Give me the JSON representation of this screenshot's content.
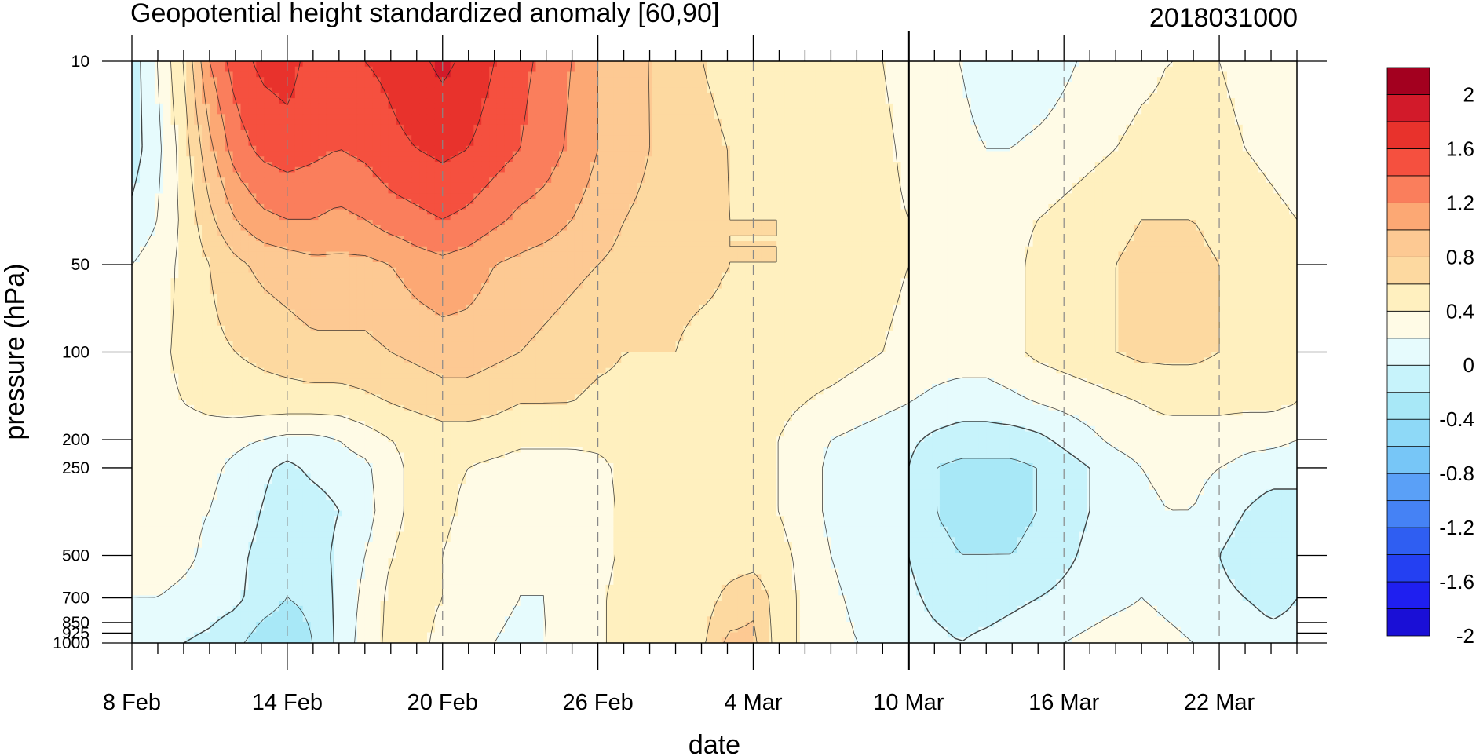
{
  "chart_data": {
    "type": "heatmap",
    "title": "Geopotential height standardized anomaly [60,90]",
    "date_label": "2018031000",
    "xlabel": "date",
    "ylabel": "pressure (hPa)",
    "x_tick_labels": [
      "8 Feb",
      "14 Feb",
      "20 Feb",
      "26 Feb",
      "4 Mar",
      "10 Mar",
      "16 Mar",
      "22 Mar"
    ],
    "x_tick_days": [
      0,
      6,
      12,
      18,
      24,
      30,
      36,
      42
    ],
    "x_range_days": [
      0,
      45
    ],
    "analysis_day": 30,
    "y_scale": "log",
    "y_ticks": [
      {
        "label": "10",
        "p": 10
      },
      {
        "label": "50",
        "p": 50
      },
      {
        "label": "100",
        "p": 100
      },
      {
        "label": "200",
        "p": 200
      },
      {
        "label": "250",
        "p": 250
      },
      {
        "label": "500",
        "p": 500
      },
      {
        "label": "700",
        "p": 700
      },
      {
        "label": "850",
        "p": 850
      },
      {
        "label": "925",
        "p": 925
      },
      {
        "label": "1000",
        "p": 1000
      }
    ],
    "ylim": [
      1000,
      10
    ],
    "levels": [
      -2,
      -1.8,
      -1.6,
      -1.4,
      -1.2,
      -1,
      -0.8,
      -0.6,
      -0.4,
      -0.2,
      0,
      0.2,
      0.4,
      0.6,
      0.8,
      1,
      1.2,
      1.4,
      1.6,
      1.8,
      2
    ],
    "colorbar_labels": [
      "2",
      "1.6",
      "1.2",
      "0.8",
      "0.4",
      "0",
      "-0.4",
      "-0.8",
      "-1.2",
      "-1.6",
      "-2"
    ],
    "colors": [
      "#1a0fd6",
      "#1f1ff0",
      "#2440f2",
      "#2f5ef2",
      "#4582f5",
      "#5aa0f7",
      "#77c6f7",
      "#8ed9f7",
      "#a8e8f7",
      "#c7f3fb",
      "#e6fbfd",
      "#fffbe6",
      "#fff0bf",
      "#fdd9a0",
      "#fdc993",
      "#fca874",
      "#fa7e5c",
      "#f5503f",
      "#e8322c",
      "#d21a2a",
      "#a3001f"
    ],
    "anomaly_samples": [
      {
        "p": 10,
        "values": [
          -0.1,
          0.2,
          0.6,
          1.2,
          1.5,
          1.65,
          1.7,
          1.5,
          1.5,
          1.6,
          1.65,
          1.75,
          1.85,
          1.75,
          1.6,
          1.45,
          1.35,
          1.2,
          1.0,
          0.85,
          0.8,
          0.7,
          0.6,
          0.55,
          0.5,
          0.5,
          0.55,
          0.55,
          0.5,
          0.4,
          0.3,
          0.25,
          0.2,
          0.1,
          0.05,
          0.05,
          0.15,
          0.25,
          0.3,
          0.35,
          0.4,
          0.4,
          0.4,
          0.35,
          0.3,
          0.25
        ]
      },
      {
        "p": 20,
        "values": [
          -0.1,
          0.15,
          0.5,
          0.95,
          1.3,
          1.45,
          1.5,
          1.45,
          1.4,
          1.45,
          1.55,
          1.6,
          1.65,
          1.6,
          1.5,
          1.4,
          1.3,
          1.15,
          1.0,
          0.9,
          0.8,
          0.7,
          0.65,
          0.6,
          0.55,
          0.55,
          0.55,
          0.55,
          0.5,
          0.45,
          0.35,
          0.3,
          0.25,
          0.2,
          0.2,
          0.25,
          0.3,
          0.35,
          0.4,
          0.45,
          0.45,
          0.45,
          0.45,
          0.4,
          0.35,
          0.3
        ]
      },
      {
        "p": 35,
        "values": [
          0.05,
          0.2,
          0.45,
          0.75,
          1.0,
          1.15,
          1.2,
          1.2,
          1.15,
          1.2,
          1.3,
          1.35,
          1.4,
          1.35,
          1.25,
          1.15,
          1.1,
          1.0,
          0.9,
          0.8,
          0.75,
          0.7,
          0.65,
          0.6,
          0.6,
          0.6,
          0.55,
          0.55,
          0.5,
          0.45,
          0.4,
          0.35,
          0.3,
          0.3,
          0.35,
          0.4,
          0.45,
          0.5,
          0.55,
          0.6,
          0.6,
          0.6,
          0.55,
          0.5,
          0.45,
          0.4
        ]
      },
      {
        "p": 50,
        "values": [
          0.2,
          0.3,
          0.45,
          0.6,
          0.75,
          0.85,
          0.9,
          0.95,
          0.95,
          0.95,
          1.0,
          1.1,
          1.15,
          1.1,
          1.0,
          0.95,
          0.9,
          0.85,
          0.8,
          0.75,
          0.7,
          0.65,
          0.65,
          0.6,
          0.6,
          0.6,
          0.55,
          0.55,
          0.5,
          0.45,
          0.4,
          0.35,
          0.3,
          0.3,
          0.35,
          0.45,
          0.5,
          0.55,
          0.6,
          0.65,
          0.65,
          0.65,
          0.6,
          0.55,
          0.5,
          0.45
        ]
      },
      {
        "p": 100,
        "values": [
          0.3,
          0.35,
          0.45,
          0.55,
          0.6,
          0.65,
          0.7,
          0.75,
          0.75,
          0.75,
          0.8,
          0.85,
          0.9,
          0.9,
          0.85,
          0.8,
          0.75,
          0.7,
          0.65,
          0.6,
          0.6,
          0.6,
          0.55,
          0.55,
          0.55,
          0.55,
          0.5,
          0.5,
          0.45,
          0.4,
          0.35,
          0.3,
          0.3,
          0.3,
          0.35,
          0.45,
          0.5,
          0.55,
          0.6,
          0.65,
          0.65,
          0.65,
          0.6,
          0.55,
          0.5,
          0.45
        ]
      },
      {
        "p": 150,
        "values": [
          0.3,
          0.35,
          0.4,
          0.45,
          0.5,
          0.5,
          0.5,
          0.5,
          0.5,
          0.55,
          0.6,
          0.65,
          0.7,
          0.7,
          0.65,
          0.6,
          0.6,
          0.6,
          0.55,
          0.55,
          0.55,
          0.55,
          0.5,
          0.5,
          0.5,
          0.45,
          0.4,
          0.35,
          0.3,
          0.25,
          0.2,
          0.15,
          0.1,
          0.1,
          0.15,
          0.2,
          0.25,
          0.3,
          0.35,
          0.4,
          0.45,
          0.45,
          0.45,
          0.45,
          0.45,
          0.4
        ]
      },
      {
        "p": 200,
        "values": [
          0.3,
          0.3,
          0.3,
          0.3,
          0.25,
          0.2,
          0.15,
          0.15,
          0.2,
          0.3,
          0.4,
          0.45,
          0.5,
          0.5,
          0.5,
          0.45,
          0.45,
          0.45,
          0.45,
          0.45,
          0.45,
          0.45,
          0.45,
          0.45,
          0.45,
          0.4,
          0.3,
          0.2,
          0.15,
          0.1,
          0.05,
          -0.05,
          -0.1,
          -0.1,
          -0.1,
          -0.05,
          0.05,
          0.15,
          0.25,
          0.3,
          0.3,
          0.3,
          0.3,
          0.25,
          0.25,
          0.2
        ]
      },
      {
        "p": 250,
        "values": [
          0.3,
          0.3,
          0.3,
          0.25,
          0.15,
          0.05,
          -0.05,
          0.05,
          0.1,
          0.15,
          0.35,
          0.45,
          0.45,
          0.4,
          0.35,
          0.3,
          0.3,
          0.3,
          0.35,
          0.45,
          0.5,
          0.5,
          0.45,
          0.45,
          0.45,
          0.4,
          0.3,
          0.15,
          0.1,
          0.05,
          0.0,
          -0.2,
          -0.25,
          -0.25,
          -0.25,
          -0.2,
          -0.1,
          0.0,
          0.1,
          0.2,
          0.25,
          0.25,
          0.2,
          0.15,
          0.1,
          0.1
        ]
      },
      {
        "p": 350,
        "values": [
          0.3,
          0.3,
          0.25,
          0.2,
          0.1,
          0.0,
          -0.15,
          -0.1,
          0.0,
          0.1,
          0.35,
          0.45,
          0.45,
          0.35,
          0.3,
          0.25,
          0.25,
          0.25,
          0.3,
          0.45,
          0.5,
          0.5,
          0.45,
          0.45,
          0.45,
          0.4,
          0.3,
          0.15,
          0.1,
          0.05,
          0.0,
          -0.2,
          -0.25,
          -0.25,
          -0.25,
          -0.2,
          -0.1,
          0.0,
          0.1,
          0.15,
          0.2,
          0.2,
          0.1,
          0.0,
          -0.1,
          -0.1
        ]
      },
      {
        "p": 500,
        "values": [
          0.25,
          0.3,
          0.25,
          0.15,
          0.05,
          -0.05,
          -0.15,
          -0.1,
          0.05,
          0.2,
          0.4,
          0.45,
          0.4,
          0.3,
          0.25,
          0.2,
          0.2,
          0.25,
          0.3,
          0.45,
          0.5,
          0.5,
          0.45,
          0.5,
          0.5,
          0.45,
          0.35,
          0.2,
          0.1,
          0.05,
          0.0,
          -0.15,
          -0.2,
          -0.2,
          -0.2,
          -0.15,
          -0.05,
          0.05,
          0.1,
          0.15,
          0.15,
          0.1,
          0.0,
          -0.1,
          -0.15,
          -0.1
        ]
      },
      {
        "p": 700,
        "values": [
          0.2,
          0.2,
          0.15,
          0.1,
          0.05,
          -0.1,
          -0.2,
          -0.15,
          0.05,
          0.25,
          0.45,
          0.45,
          0.4,
          0.3,
          0.25,
          0.2,
          0.2,
          0.25,
          0.35,
          0.5,
          0.55,
          0.5,
          0.5,
          0.65,
          0.75,
          0.5,
          0.35,
          0.25,
          0.15,
          0.1,
          0.05,
          -0.05,
          -0.1,
          -0.1,
          -0.05,
          0.0,
          0.05,
          0.1,
          0.15,
          0.2,
          0.15,
          0.1,
          0.05,
          0.0,
          -0.05,
          0.0
        ]
      },
      {
        "p": 1000,
        "values": [
          0.1,
          0.05,
          0.0,
          -0.05,
          -0.15,
          -0.3,
          -0.35,
          -0.2,
          0.05,
          0.3,
          0.45,
          0.45,
          0.35,
          0.25,
          0.2,
          0.15,
          0.2,
          0.25,
          0.35,
          0.5,
          0.55,
          0.5,
          0.55,
          0.85,
          0.85,
          0.5,
          0.35,
          0.3,
          0.2,
          0.15,
          0.1,
          0.05,
          0.0,
          0.05,
          0.1,
          0.15,
          0.2,
          0.25,
          0.3,
          0.3,
          0.25,
          0.2,
          0.15,
          0.1,
          0.05,
          0.05
        ]
      }
    ]
  }
}
